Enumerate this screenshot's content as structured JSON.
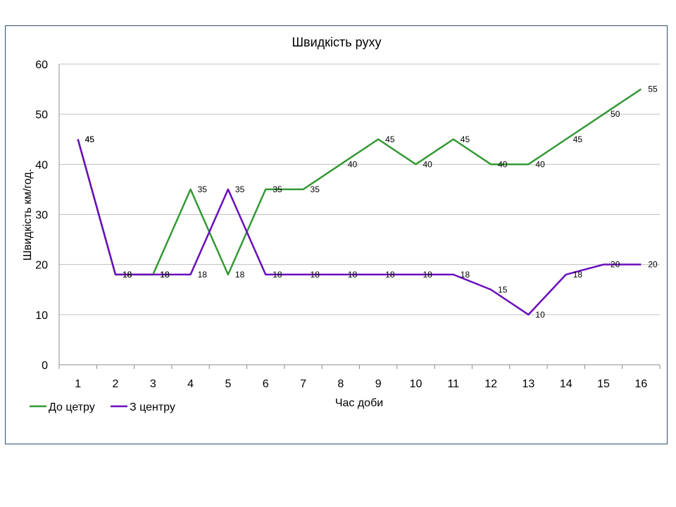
{
  "chart_data": {
    "type": "line",
    "title": "Швидкість руху",
    "xlabel": "Час доби",
    "ylabel": "Швидкість км/год.",
    "categories": [
      "1",
      "2",
      "3",
      "4",
      "5",
      "6",
      "7",
      "8",
      "9",
      "10",
      "11",
      "12",
      "13",
      "14",
      "15",
      "16"
    ],
    "ylim": [
      0,
      60
    ],
    "yticks": [
      "0",
      "10",
      "20",
      "30",
      "40",
      "50",
      "60"
    ],
    "grid": true,
    "legend_position": "bottom-left",
    "series": [
      {
        "name": "До цетру",
        "color": "#339933",
        "values": [
          45,
          18,
          18,
          35,
          18,
          35,
          35,
          40,
          45,
          40,
          45,
          40,
          40,
          45,
          50,
          55
        ],
        "labels": [
          "45",
          "18",
          "18",
          "35",
          "18",
          "35",
          "35",
          "40",
          "45",
          "40",
          "45",
          "40",
          "40",
          "45",
          "50",
          "55"
        ]
      },
      {
        "name": "З центру",
        "color": "#6a0dbd",
        "values": [
          45,
          18,
          18,
          18,
          35,
          18,
          18,
          18,
          18,
          18,
          18,
          15,
          10,
          18,
          20,
          20
        ],
        "labels": [
          "45",
          "18",
          "18",
          "18",
          "35",
          "18",
          "18",
          "18",
          "18",
          "18",
          "18",
          "15",
          "10",
          "18",
          "20",
          "20"
        ]
      }
    ]
  }
}
